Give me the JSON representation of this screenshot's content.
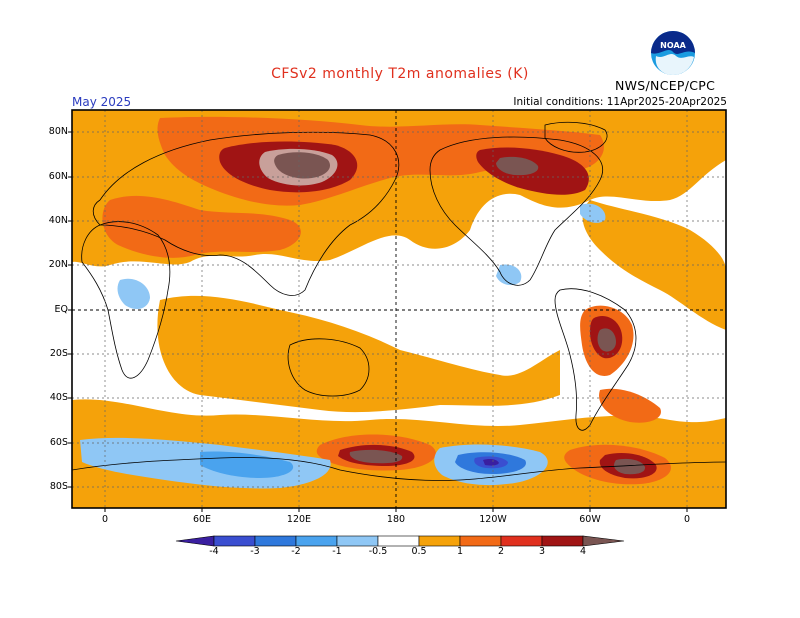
{
  "header": {
    "title": "CFSv2 monthly T2m anomalies (K)",
    "month": "May 2025",
    "initial_conditions": "Initial conditions: 11Apr2025-20Apr2025",
    "agency": "NWS/NCEP/CPC",
    "logo_text": "NOAA"
  },
  "axes": {
    "lat_labels": [
      "80N",
      "60N",
      "40N",
      "20N",
      "EQ",
      "20S",
      "40S",
      "60S",
      "80S"
    ],
    "lon_labels": [
      "0",
      "60E",
      "120E",
      "180",
      "120W",
      "60W",
      "0"
    ]
  },
  "colorbar": {
    "tick_labels": [
      "-4",
      "-3",
      "-2",
      "-1",
      "-0.5",
      "0.5",
      "1",
      "2",
      "3",
      "4"
    ],
    "colors": [
      "#3a1fa0",
      "#3a4ed0",
      "#2f78dc",
      "#4aa3ee",
      "#8fc7f5",
      "#ffffff",
      "#f5a20a",
      "#f26a16",
      "#e0301e",
      "#a01414",
      "#c8a09a",
      "#7a5552"
    ]
  },
  "map_regions": [
    {
      "name": "arctic",
      "level": "warm"
    },
    {
      "name": "siberia",
      "level": "strong-warm"
    },
    {
      "name": "north-america-arctic",
      "level": "strong-warm"
    },
    {
      "name": "central-south-america",
      "level": "strong-warm"
    },
    {
      "name": "ross-sea",
      "level": "strong-warm"
    },
    {
      "name": "weddell-sea",
      "level": "strong-warm"
    },
    {
      "name": "southern-ocean-pacific",
      "level": "cold"
    },
    {
      "name": "southern-ocean-indian",
      "level": "cold"
    }
  ]
}
